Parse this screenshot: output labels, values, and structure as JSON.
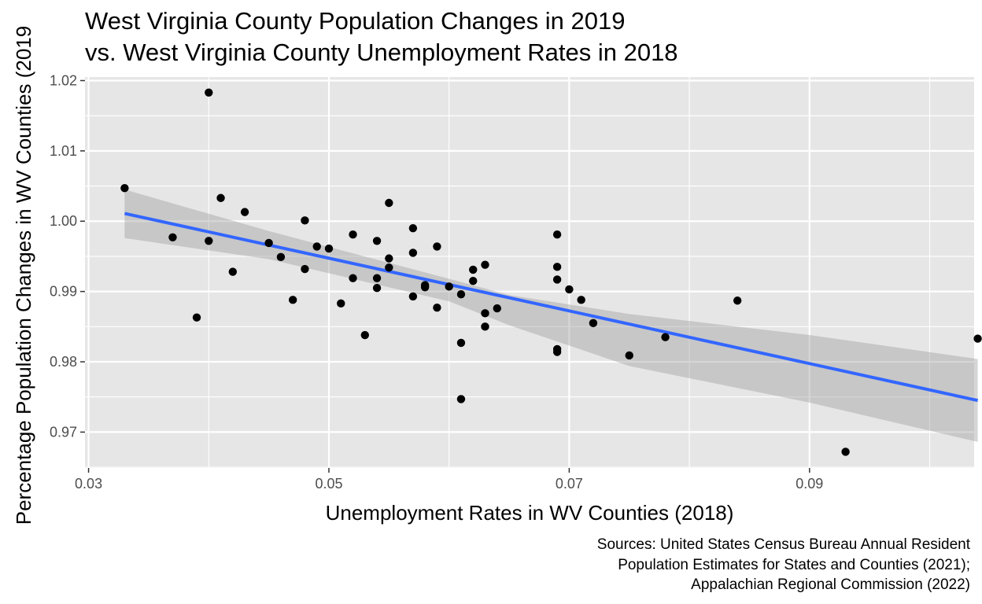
{
  "chart_data": {
    "type": "scatter",
    "title_lines": [
      "West Virginia County Population Changes in 2019",
      "vs. West Virginia County Unemployment Rates in 2018"
    ],
    "xlabel": "Unemployment Rates in WV Counties (2018)",
    "ylabel": "Percentage Population Changes in WV Counties (2019",
    "caption_lines": [
      "Sources: United States Census Bureau Annual Resident",
      "Population Estimates for States and Counties (2021);",
      "Appalachian Regional Commission (2022)"
    ],
    "xlim": [
      0.0297,
      0.1037
    ],
    "ylim": [
      0.9649,
      1.0205
    ],
    "x_ticks": [
      0.03,
      0.05,
      0.07,
      0.09
    ],
    "x_tick_labels": [
      "0.03",
      "0.05",
      "0.07",
      "0.09"
    ],
    "x_minor_ticks": [
      0.04,
      0.06,
      0.08,
      0.1
    ],
    "y_ticks": [
      0.97,
      0.98,
      0.99,
      1.0,
      1.01,
      1.02
    ],
    "y_tick_labels": [
      "0.97",
      "0.98",
      "0.99",
      "1.00",
      "1.01",
      "1.02"
    ],
    "y_minor_ticks": [
      0.965,
      0.975,
      0.985,
      0.995,
      1.005,
      1.015
    ],
    "grid": true,
    "panel_color": "#e6e6e6",
    "grid_color": "#ffffff",
    "point_color": "#000000",
    "fit_line_color": "#3366ff",
    "ribbon_color": "#999999",
    "points": [
      {
        "x": 0.033,
        "y": 1.0047
      },
      {
        "x": 0.037,
        "y": 0.9977
      },
      {
        "x": 0.039,
        "y": 0.9863
      },
      {
        "x": 0.04,
        "y": 1.0183
      },
      {
        "x": 0.04,
        "y": 0.9972
      },
      {
        "x": 0.041,
        "y": 1.0033
      },
      {
        "x": 0.042,
        "y": 0.9928
      },
      {
        "x": 0.043,
        "y": 1.0013
      },
      {
        "x": 0.045,
        "y": 0.9969
      },
      {
        "x": 0.046,
        "y": 0.9949
      },
      {
        "x": 0.047,
        "y": 0.9888
      },
      {
        "x": 0.048,
        "y": 1.0001
      },
      {
        "x": 0.048,
        "y": 0.9932
      },
      {
        "x": 0.049,
        "y": 0.9964
      },
      {
        "x": 0.05,
        "y": 0.9961
      },
      {
        "x": 0.051,
        "y": 0.9883
      },
      {
        "x": 0.052,
        "y": 0.9981
      },
      {
        "x": 0.052,
        "y": 0.9919
      },
      {
        "x": 0.053,
        "y": 0.9838
      },
      {
        "x": 0.054,
        "y": 0.9972
      },
      {
        "x": 0.054,
        "y": 0.9919
      },
      {
        "x": 0.054,
        "y": 0.9905
      },
      {
        "x": 0.055,
        "y": 1.0026
      },
      {
        "x": 0.055,
        "y": 0.9947
      },
      {
        "x": 0.055,
        "y": 0.9934
      },
      {
        "x": 0.057,
        "y": 0.999
      },
      {
        "x": 0.057,
        "y": 0.9955
      },
      {
        "x": 0.057,
        "y": 0.9893
      },
      {
        "x": 0.058,
        "y": 0.9909
      },
      {
        "x": 0.058,
        "y": 0.9906
      },
      {
        "x": 0.059,
        "y": 0.9964
      },
      {
        "x": 0.059,
        "y": 0.9877
      },
      {
        "x": 0.06,
        "y": 0.9907
      },
      {
        "x": 0.061,
        "y": 0.9896
      },
      {
        "x": 0.061,
        "y": 0.9827
      },
      {
        "x": 0.061,
        "y": 0.9747
      },
      {
        "x": 0.062,
        "y": 0.9931
      },
      {
        "x": 0.062,
        "y": 0.9915
      },
      {
        "x": 0.063,
        "y": 0.9938
      },
      {
        "x": 0.063,
        "y": 0.9869
      },
      {
        "x": 0.063,
        "y": 0.985
      },
      {
        "x": 0.064,
        "y": 0.9876
      },
      {
        "x": 0.069,
        "y": 0.9981
      },
      {
        "x": 0.069,
        "y": 0.9935
      },
      {
        "x": 0.069,
        "y": 0.9917
      },
      {
        "x": 0.069,
        "y": 0.9818
      },
      {
        "x": 0.069,
        "y": 0.9814
      },
      {
        "x": 0.07,
        "y": 0.9903
      },
      {
        "x": 0.071,
        "y": 0.9888
      },
      {
        "x": 0.072,
        "y": 0.9855
      },
      {
        "x": 0.075,
        "y": 0.9809
      },
      {
        "x": 0.078,
        "y": 0.9835
      },
      {
        "x": 0.084,
        "y": 0.9887
      },
      {
        "x": 0.093,
        "y": 0.9672
      },
      {
        "x": 0.104,
        "y": 0.9833
      }
    ],
    "fit_line": {
      "x": [
        0.033,
        0.104
      ],
      "y": [
        1.0011,
        0.9745
      ]
    },
    "confidence_ribbon": {
      "x": [
        0.033,
        0.045,
        0.06,
        0.065,
        0.075,
        0.09,
        0.104
      ],
      "upper": [
        1.0045,
        0.9986,
        0.9918,
        0.9895,
        0.9868,
        0.9838,
        0.9804
      ],
      "lower": [
        0.9976,
        0.9946,
        0.9886,
        0.9852,
        0.9794,
        0.9742,
        0.9686
      ]
    }
  }
}
